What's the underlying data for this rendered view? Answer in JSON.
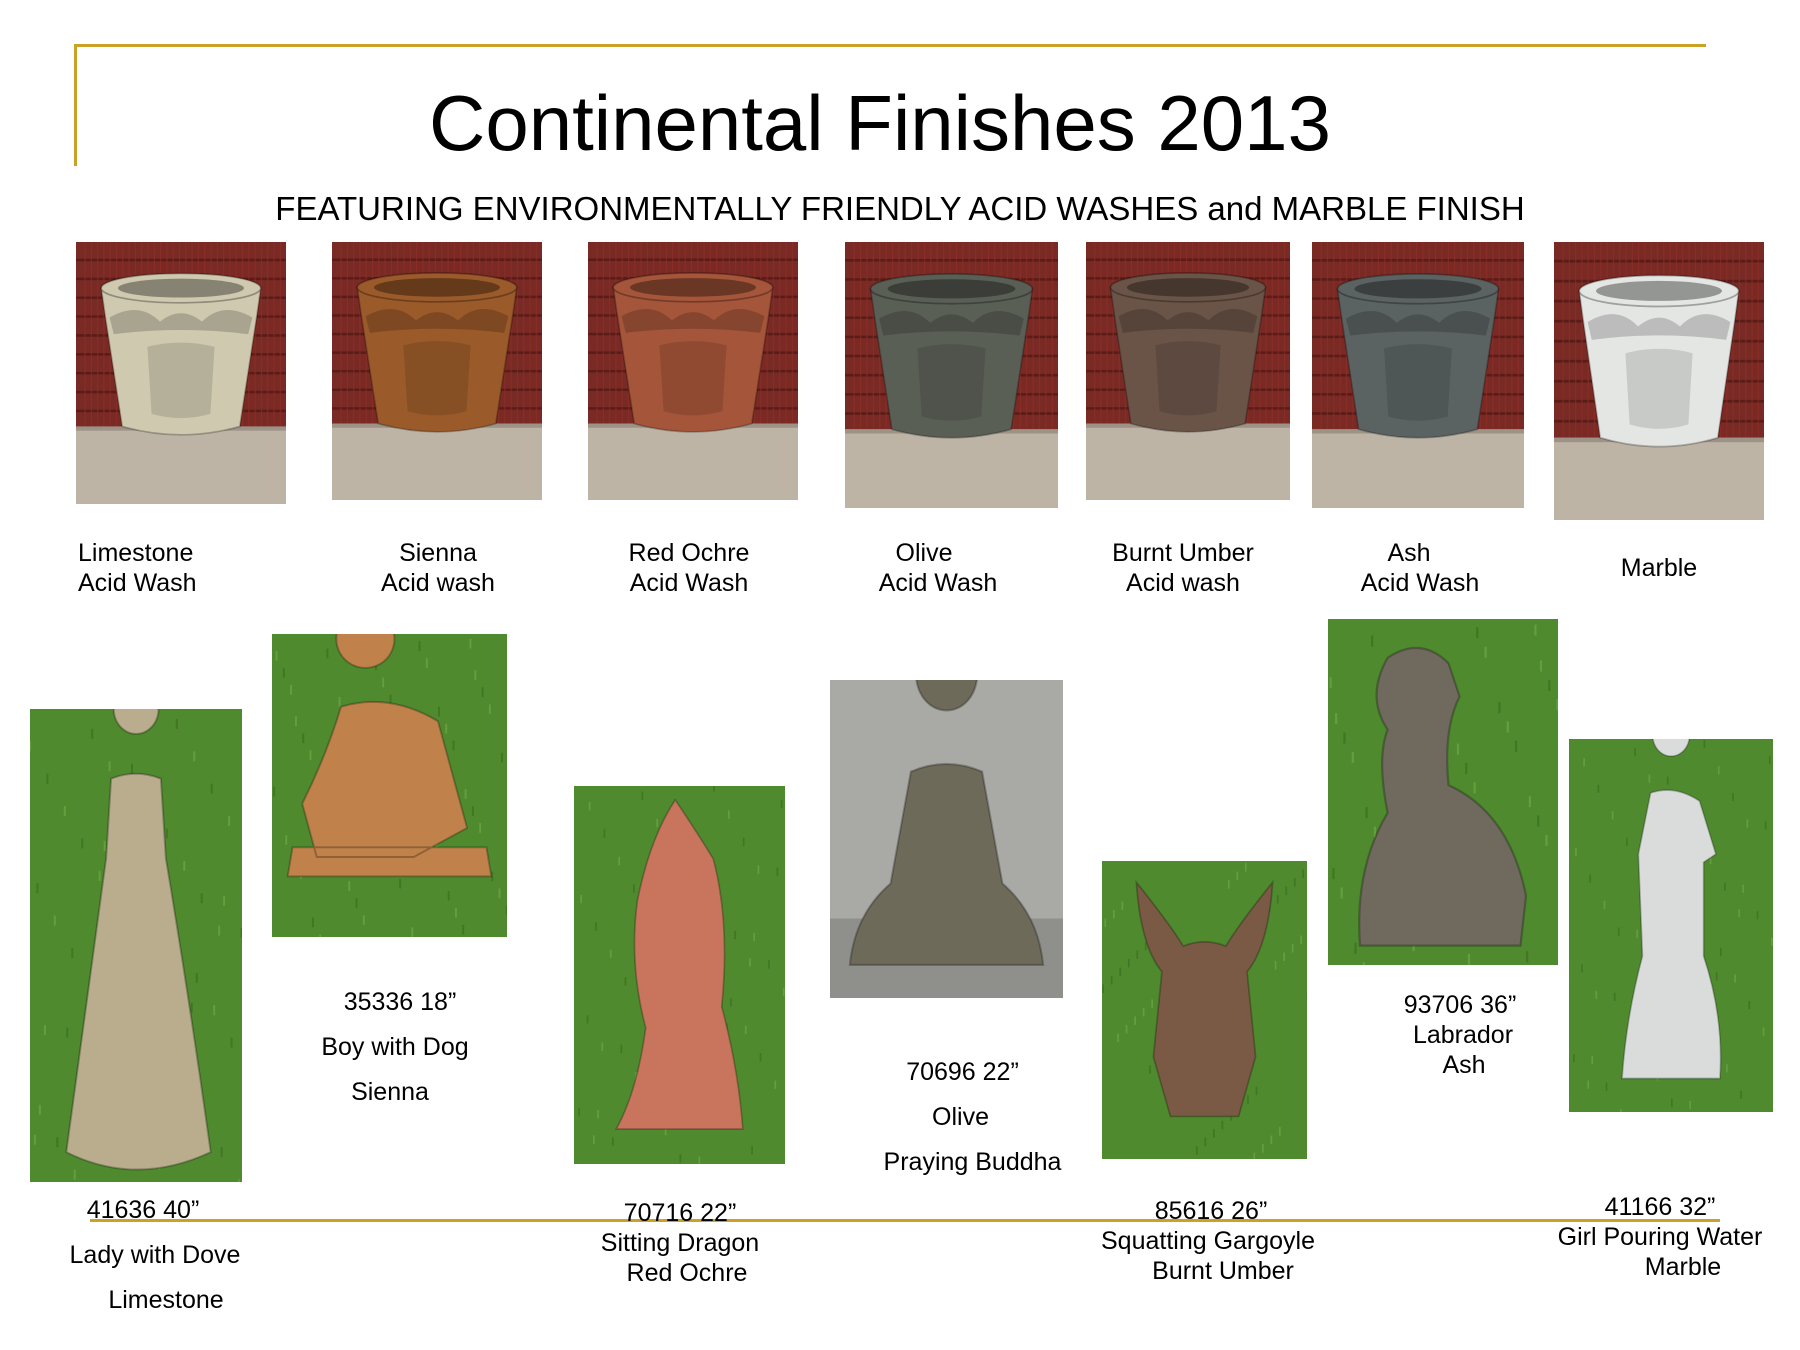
{
  "header": {
    "title": "Continental Finishes 2013",
    "subtitle": "FEATURING ENVIRONMENTALLY FRIENDLY ACID WASHES and MARBLE FINISH"
  },
  "colors": {
    "rule": "#c9a227",
    "brick": "#7a2a24",
    "grass": "#4f8a2e"
  },
  "finishes": [
    {
      "line1": "Limestone",
      "line2": "Acid Wash",
      "pot_color": "#cfc9b0"
    },
    {
      "line1": "Sienna",
      "line2": "Acid wash",
      "pot_color": "#9a5a2a"
    },
    {
      "line1": "Red Ochre",
      "line2": "Acid Wash",
      "pot_color": "#a4553a"
    },
    {
      "line1": "Olive",
      "line2": "Acid Wash",
      "pot_color": "#5a5f56"
    },
    {
      "line1": "Burnt Umber",
      "line2": "Acid wash",
      "pot_color": "#6a5448"
    },
    {
      "line1": "Ash",
      "line2": "Acid Wash",
      "pot_color": "#5b6262"
    },
    {
      "line1": "Marble",
      "line2": "",
      "pot_color": "#e4e6e4"
    }
  ],
  "statues": [
    {
      "sku": "41636  40”",
      "name": "Lady with Dove",
      "finish": "Limestone",
      "statue_color": "#b9ad8e",
      "subject": "lady-with-dove"
    },
    {
      "sku": "35336  18”",
      "name": "Boy with Dog",
      "finish": "Sienna",
      "statue_color": "#c0824a",
      "subject": "boy-with-dog"
    },
    {
      "sku": "70716   22”",
      "name": "Sitting Dragon",
      "finish": "Red Ochre",
      "statue_color": "#c9755e",
      "subject": "sitting-dragon"
    },
    {
      "sku": "70696   22”",
      "name": "Olive",
      "finish": "Praying Buddha",
      "statue_color": "#6e6a5a",
      "subject": "praying-buddha"
    },
    {
      "sku": "85616   26”",
      "name": "Squatting Gargoyle",
      "finish": "Burnt Umber",
      "statue_color": "#7a5a44",
      "subject": "squatting-gargoyle"
    },
    {
      "sku": "93706  36”",
      "name": "Labrador",
      "finish": "Ash",
      "statue_color": "#6f695e",
      "subject": "labrador"
    },
    {
      "sku": "41166  32”",
      "name": "Girl Pouring Water",
      "finish": "Marble",
      "statue_color": "#d9dcdb",
      "subject": "girl-pouring-water"
    }
  ]
}
